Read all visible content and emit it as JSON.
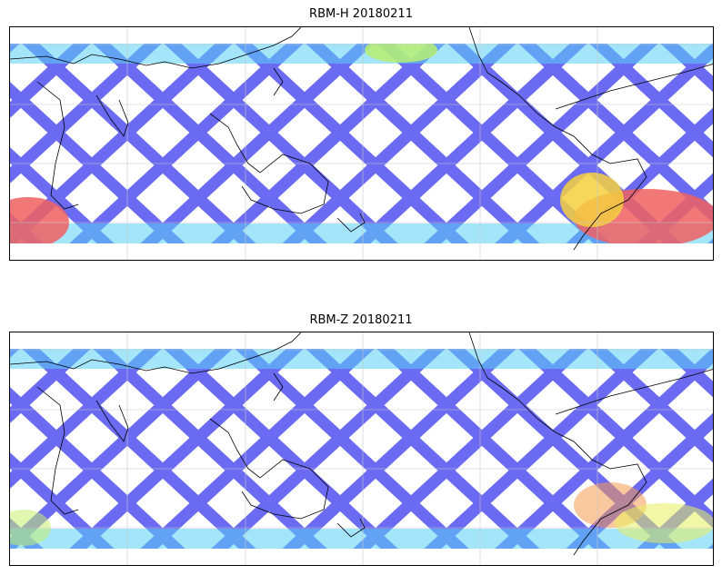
{
  "panels": [
    {
      "title": "RBM-H 20180211"
    },
    {
      "title": "RBM-Z 20180211"
    }
  ],
  "colors": {
    "swath_low": "#6a6af2",
    "swath_mid": "#5ad0f5",
    "swath_high": "#f06060",
    "land_outline": "#000000",
    "gridline": "#c8c8c8"
  }
}
